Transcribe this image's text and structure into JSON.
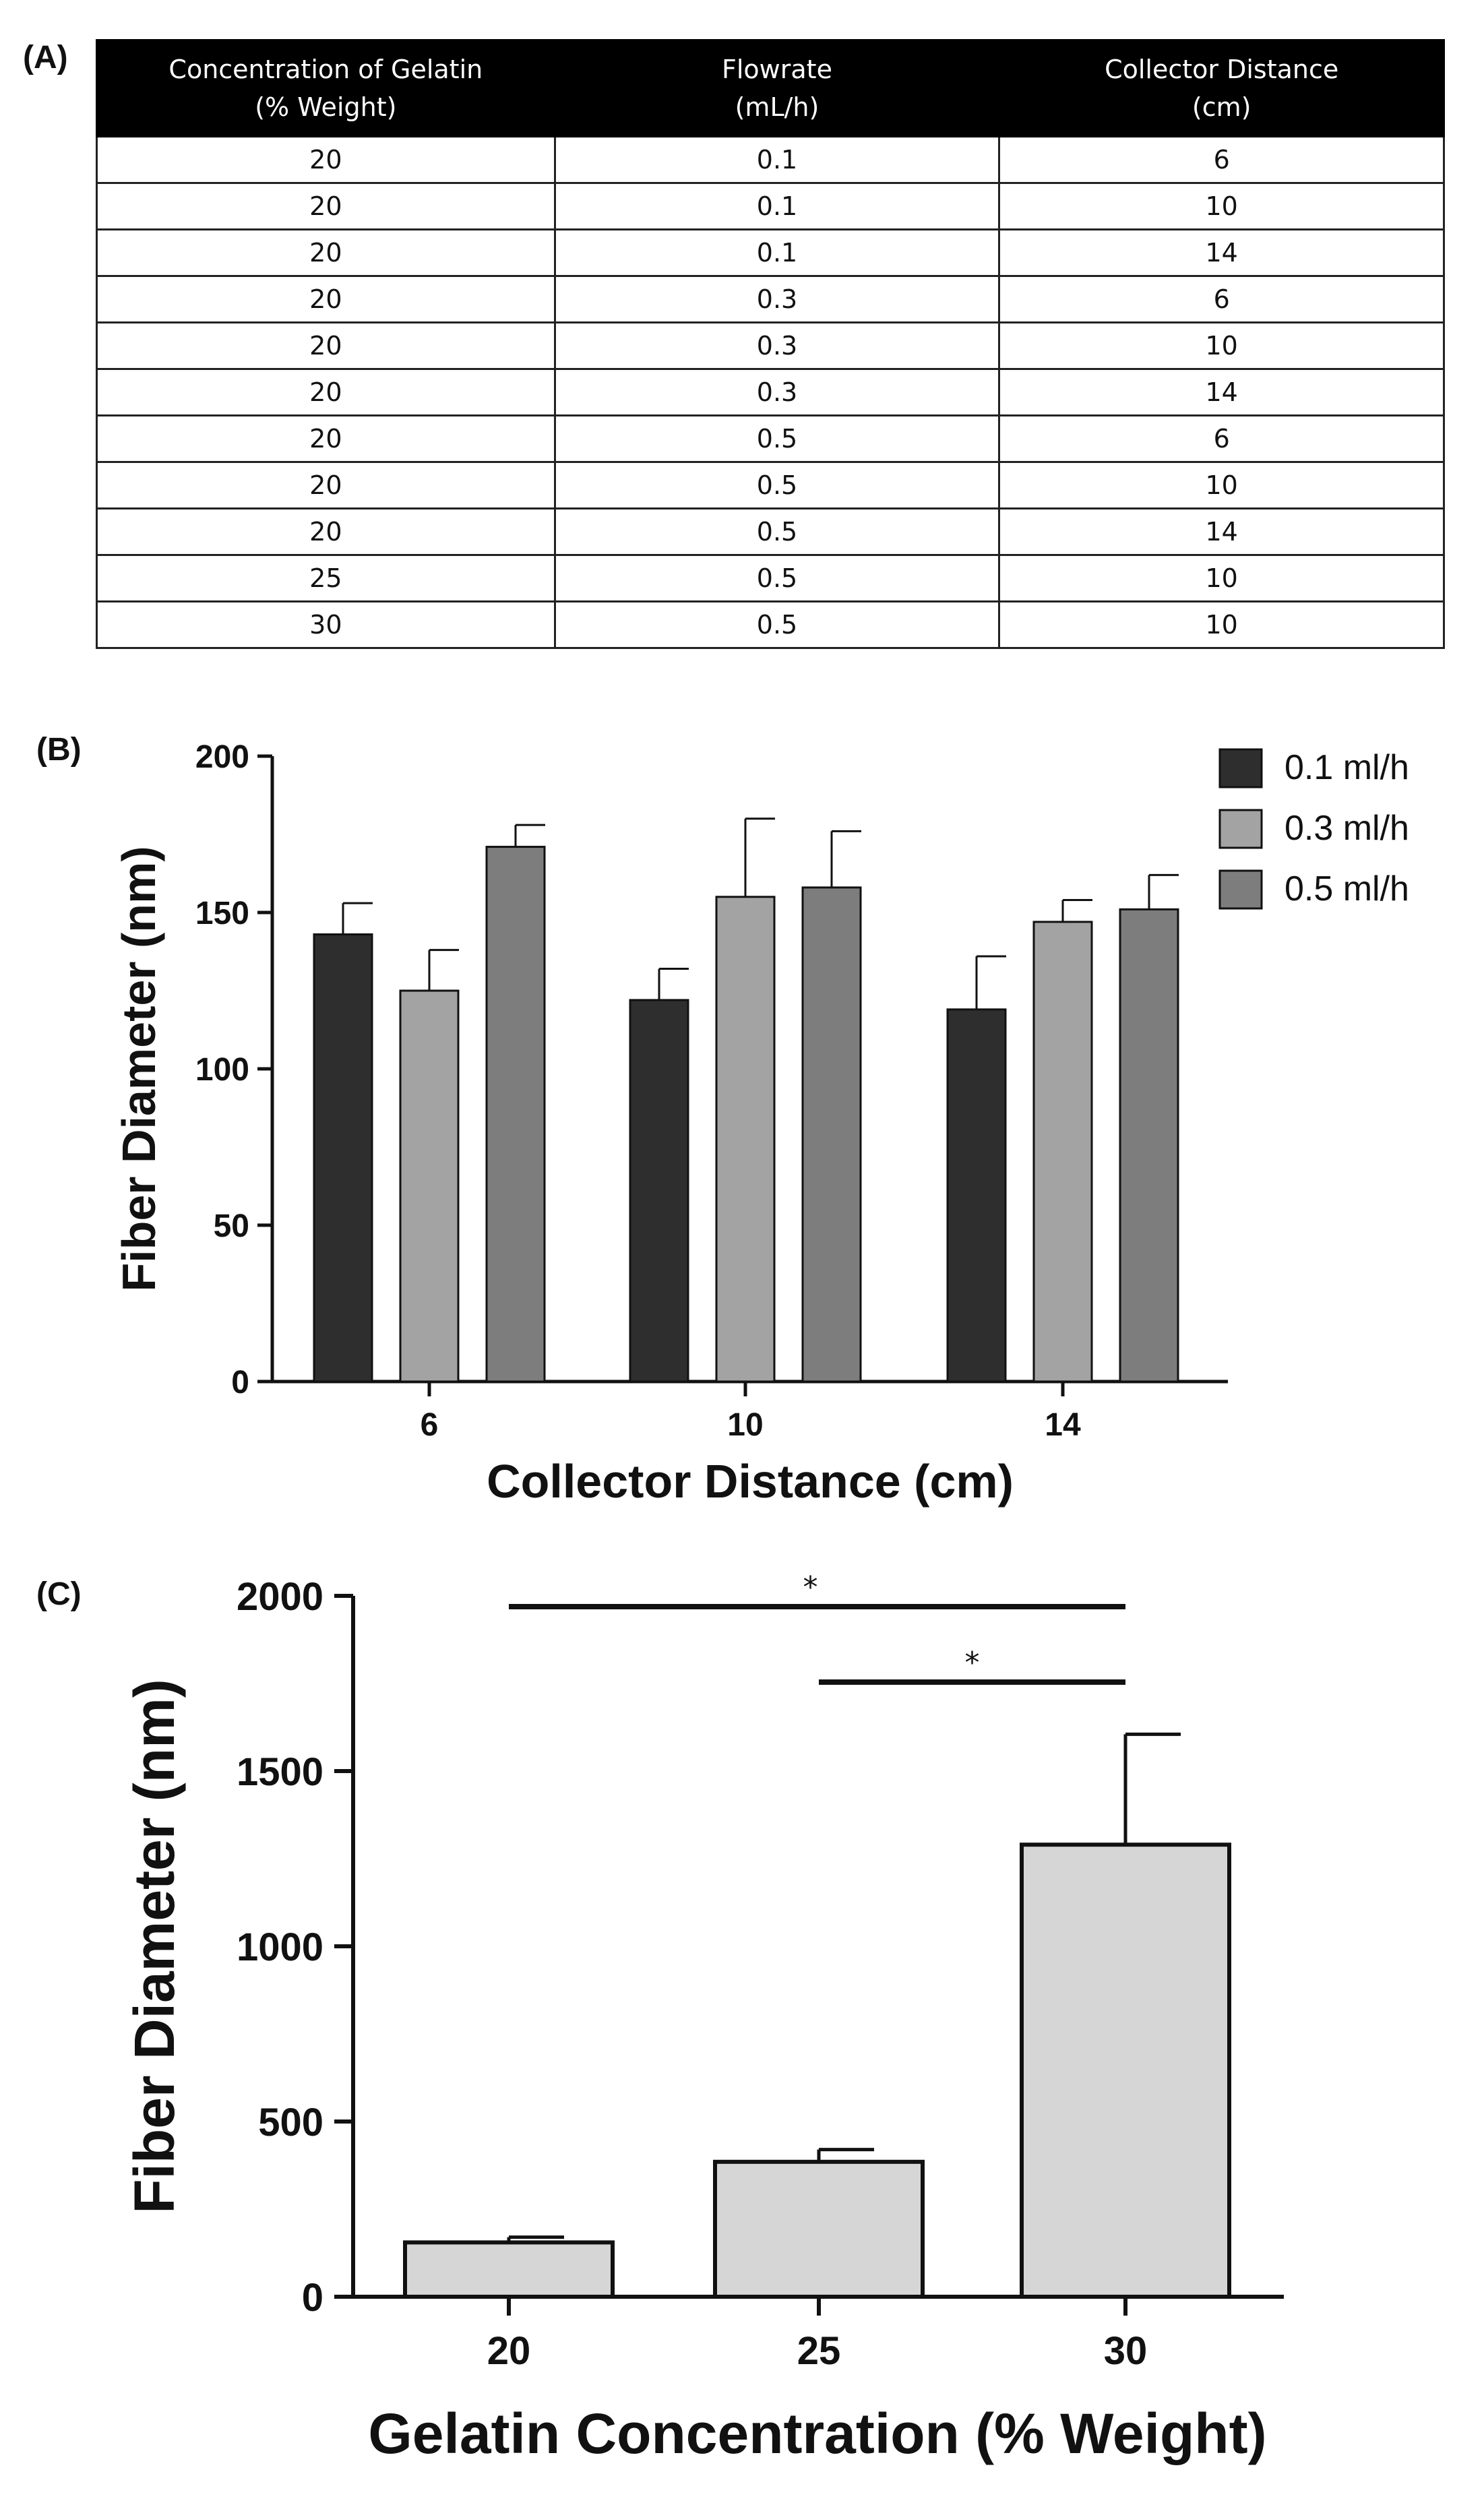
{
  "panels": {
    "a": "(A)",
    "b": "(B)",
    "c": "(C)"
  },
  "table": {
    "headers": [
      [
        "Concentration of Gelatin",
        "(% Weight)"
      ],
      [
        "Flowrate",
        "(mL/h)"
      ],
      [
        "Collector Distance",
        "(cm)"
      ]
    ],
    "rows": [
      [
        "20",
        "0.1",
        "6"
      ],
      [
        "20",
        "0.1",
        "10"
      ],
      [
        "20",
        "0.1",
        "14"
      ],
      [
        "20",
        "0.3",
        "6"
      ],
      [
        "20",
        "0.3",
        "10"
      ],
      [
        "20",
        "0.3",
        "14"
      ],
      [
        "20",
        "0.5",
        "6"
      ],
      [
        "20",
        "0.5",
        "10"
      ],
      [
        "20",
        "0.5",
        "14"
      ],
      [
        "25",
        "0.5",
        "10"
      ],
      [
        "30",
        "0.5",
        "10"
      ]
    ]
  },
  "chart_data": [
    {
      "type": "bar",
      "title": "",
      "xlabel": "Collector Distance (cm)",
      "ylabel": "Fiber Diameter (nm)",
      "categories": [
        "6",
        "10",
        "14"
      ],
      "ylim": [
        0,
        200
      ],
      "yticks": [
        0,
        50,
        100,
        150,
        200
      ],
      "legend_position": "top-right",
      "series": [
        {
          "name": "0.1 ml/h",
          "color": "#2e2e2e",
          "values": [
            143,
            122,
            119
          ],
          "errors": [
            10,
            10,
            17
          ]
        },
        {
          "name": "0.3 ml/h",
          "color": "#a3a3a3",
          "values": [
            125,
            155,
            147
          ],
          "errors": [
            13,
            25,
            7
          ]
        },
        {
          "name": "0.5 ml/h",
          "color": "#7d7d7d",
          "values": [
            171,
            158,
            151
          ],
          "errors": [
            7,
            18,
            11
          ]
        }
      ]
    },
    {
      "type": "bar",
      "title": "",
      "xlabel": "Gelatin Concentration (% Weight)",
      "ylabel": "Fiber Diameter (nm)",
      "categories": [
        "20",
        "25",
        "30"
      ],
      "ylim": [
        0,
        2000
      ],
      "yticks": [
        0,
        500,
        1000,
        1500,
        2000
      ],
      "series": [
        {
          "name": "Fiber Diameter",
          "color": "#d6d6d6",
          "values": [
            155,
            385,
            1290
          ],
          "errors": [
            15,
            35,
            315
          ]
        }
      ],
      "significance": [
        {
          "from": "20",
          "to": "30",
          "label": "*"
        },
        {
          "from": "25",
          "to": "30",
          "label": "*"
        }
      ]
    }
  ]
}
